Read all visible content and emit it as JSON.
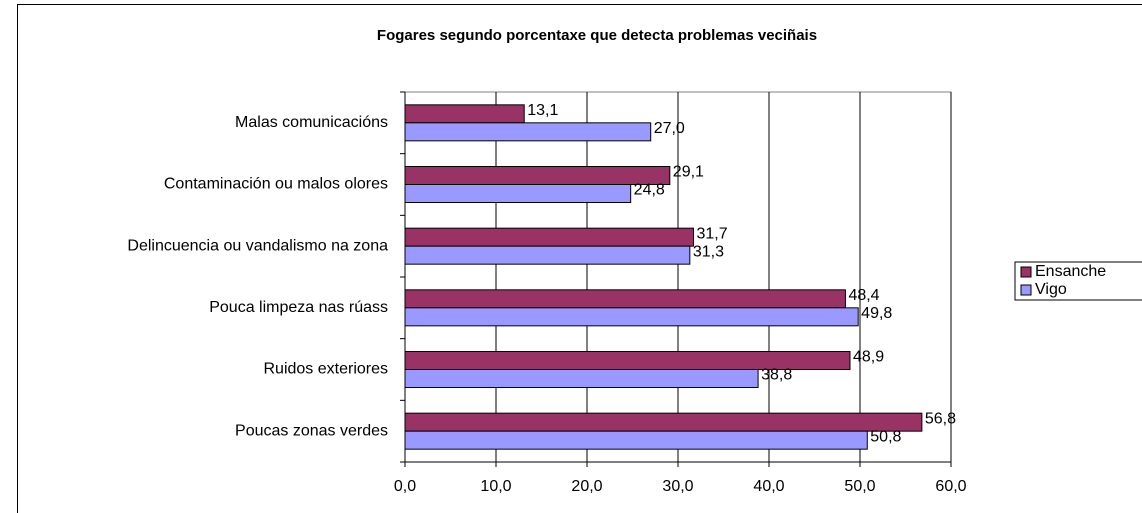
{
  "chart_data": {
    "type": "barh",
    "title": "Fogares segundo porcentaxe que detecta problemas veciñais",
    "categories": [
      "Malas comunicacións",
      "Contaminación ou malos olores",
      "Delincuencia ou vandalismo na zona",
      "Pouca limpeza nas rúass",
      "Ruidos exteriores",
      "Poucas zonas verdes"
    ],
    "series": [
      {
        "name": "Ensanche",
        "color": "#993366",
        "values": [
          13.1,
          29.1,
          31.7,
          48.4,
          48.9,
          56.8
        ],
        "value_labels": [
          "13,1",
          "29,1",
          "31,7",
          "48,4",
          "48,9",
          "56,8"
        ]
      },
      {
        "name": "Vigo",
        "color": "#9999ff",
        "values": [
          27.0,
          24.8,
          31.3,
          49.8,
          38.8,
          50.8
        ],
        "value_labels": [
          "27,0",
          "24,8",
          "31,3",
          "49,8",
          "38,8",
          "50,8"
        ]
      }
    ],
    "xlim": [
      0,
      60
    ],
    "xticks": [
      {
        "value": 0,
        "label": "0,0"
      },
      {
        "value": 10,
        "label": "10,0"
      },
      {
        "value": 20,
        "label": "20,0"
      },
      {
        "value": 30,
        "label": "30,0"
      },
      {
        "value": 40,
        "label": "40,0"
      },
      {
        "value": 50,
        "label": "50,0"
      },
      {
        "value": 60,
        "label": "60,0"
      }
    ],
    "grid": true,
    "legend": "right"
  }
}
